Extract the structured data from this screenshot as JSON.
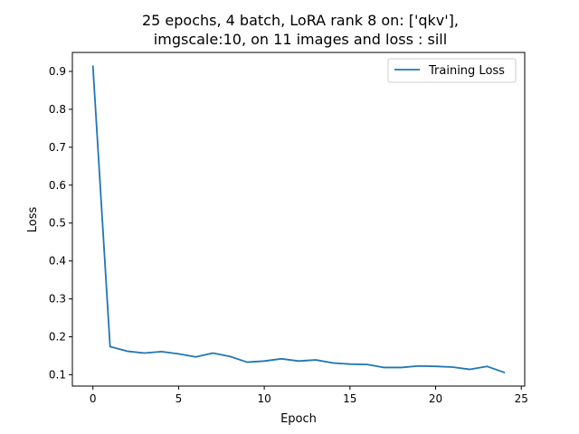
{
  "chart_data": {
    "type": "line",
    "title_lines": [
      "25 epochs, 4 batch, LoRA rank 8 on: ['qkv'],",
      "imgscale:10, on 11 images and loss : sill"
    ],
    "xlabel": "Epoch",
    "ylabel": "Loss",
    "xlim": [
      -1.2,
      25.2
    ],
    "ylim": [
      0.07,
      0.95
    ],
    "xticks": [
      0,
      5,
      10,
      15,
      20,
      25
    ],
    "yticks": [
      0.1,
      0.2,
      0.3,
      0.4,
      0.5,
      0.6,
      0.7,
      0.8,
      0.9
    ],
    "ytick_labels": [
      "0.1",
      "0.2",
      "0.3",
      "0.4",
      "0.5",
      "0.6",
      "0.7",
      "0.8",
      "0.9"
    ],
    "legend_position": "top-right",
    "series": [
      {
        "name": "Training Loss",
        "color": "#1f77b4",
        "x": [
          0,
          1,
          2,
          3,
          4,
          5,
          6,
          7,
          8,
          9,
          10,
          11,
          12,
          13,
          14,
          15,
          16,
          17,
          18,
          19,
          20,
          21,
          22,
          23,
          24
        ],
        "y": [
          0.913,
          0.174,
          0.162,
          0.157,
          0.161,
          0.155,
          0.147,
          0.157,
          0.148,
          0.133,
          0.136,
          0.142,
          0.136,
          0.139,
          0.131,
          0.128,
          0.127,
          0.119,
          0.119,
          0.123,
          0.122,
          0.12,
          0.114,
          0.122,
          0.106
        ]
      }
    ]
  }
}
